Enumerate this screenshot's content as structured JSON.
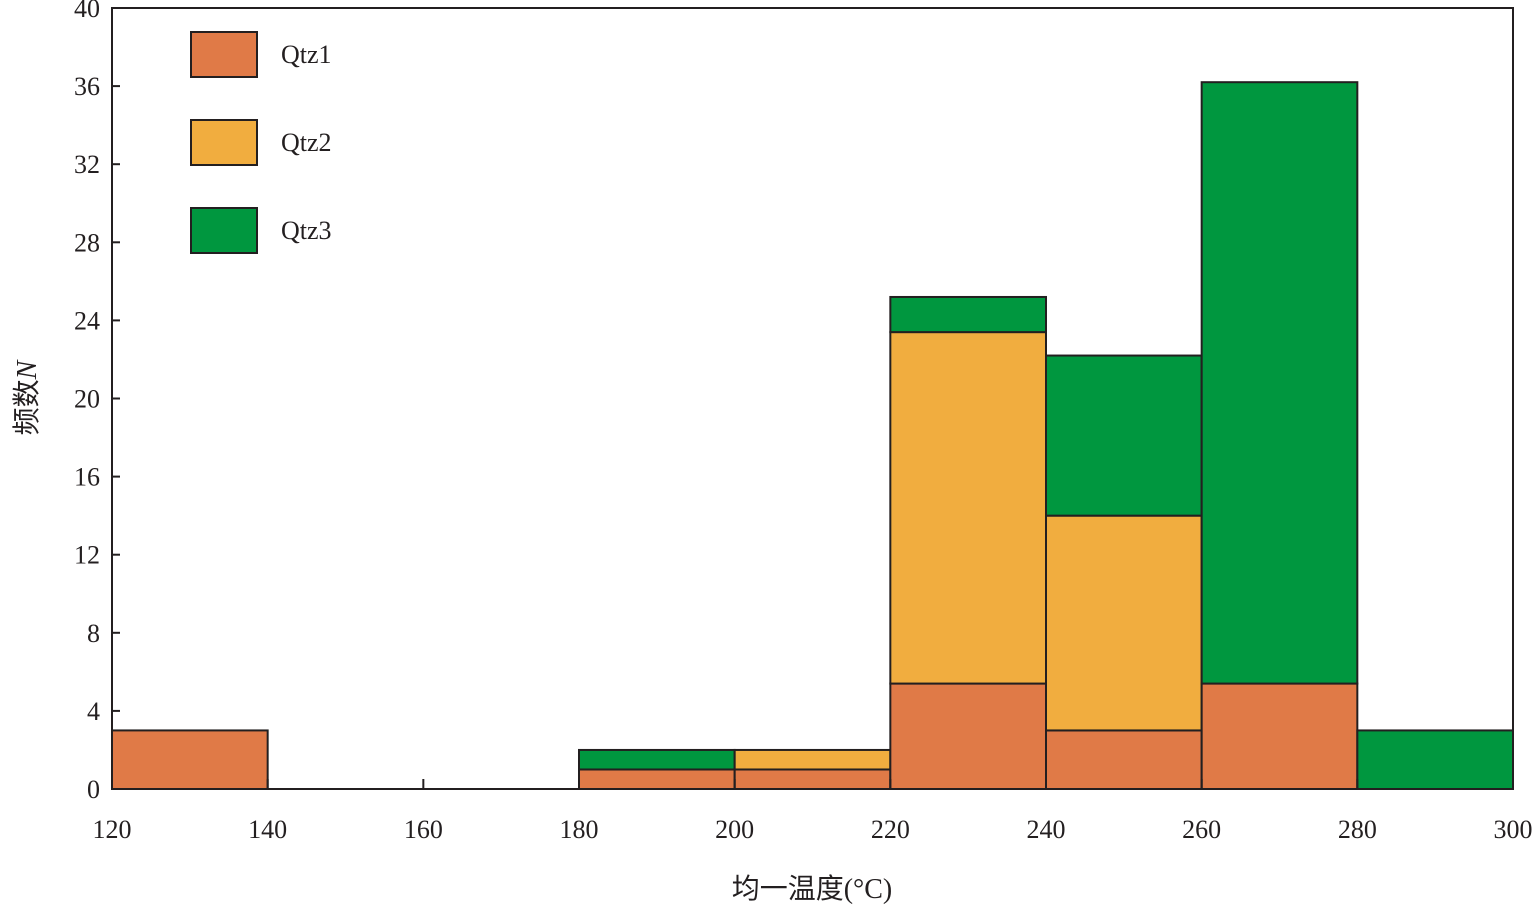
{
  "chart_data": {
    "type": "bar",
    "stacked": true,
    "title": "",
    "xlabel": "均一温度(°C)",
    "ylabel": "频数N",
    "ylabel_main": "频数",
    "ylabel_italic": "N",
    "bin_edges": [
      120,
      140,
      160,
      180,
      200,
      220,
      240,
      260,
      280,
      300
    ],
    "x_ticks": [
      "120",
      "140",
      "160",
      "180",
      "200",
      "220",
      "240",
      "260",
      "280",
      "300"
    ],
    "y_ticks": [
      "0",
      "4",
      "8",
      "12",
      "16",
      "20",
      "24",
      "28",
      "32",
      "36",
      "40"
    ],
    "xlim": [
      120,
      300
    ],
    "ylim": [
      0,
      40
    ],
    "legend_position": "top-left",
    "series": [
      {
        "name": "Qtz1",
        "color": "#e07a47",
        "values": [
          3,
          0,
          0,
          1,
          1,
          5.4,
          3,
          5.4,
          0
        ]
      },
      {
        "name": "Qtz2",
        "color": "#f1ad3f",
        "values": [
          0,
          0,
          0,
          0,
          1,
          18,
          11,
          0,
          0
        ]
      },
      {
        "name": "Qtz3",
        "color": "#00973f",
        "values": [
          0,
          0,
          0,
          1,
          0,
          1.8,
          8.2,
          30.8,
          3
        ]
      }
    ]
  }
}
